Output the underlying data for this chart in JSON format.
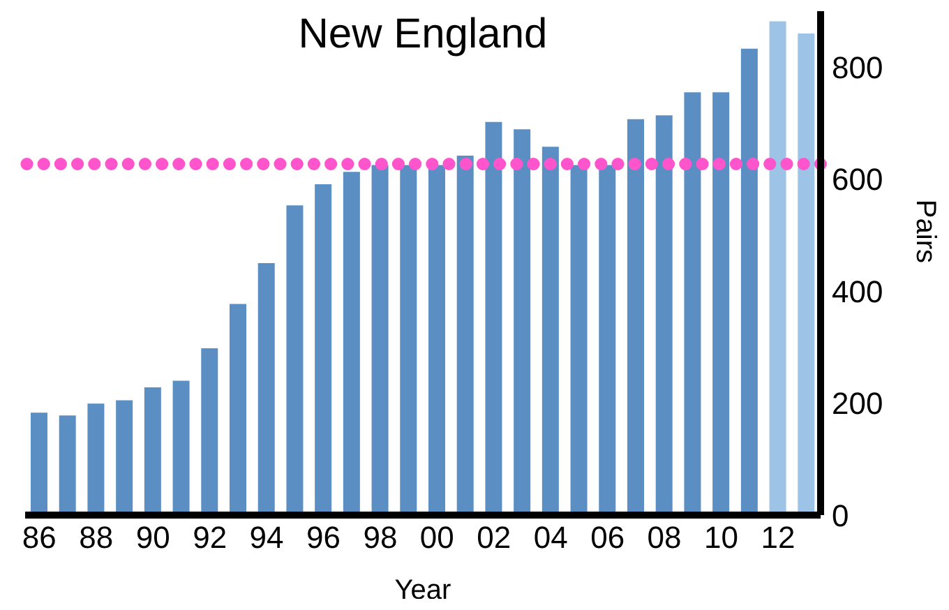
{
  "chart_data": {
    "type": "bar",
    "title": "New England",
    "xlabel": "Year",
    "ylabel": "Pairs",
    "categories": [
      "86",
      null,
      "88",
      null,
      "90",
      null,
      "92",
      null,
      "94",
      null,
      "96",
      null,
      "98",
      null,
      "00",
      null,
      "02",
      null,
      "04",
      null,
      "06",
      null,
      "08",
      null,
      "10",
      null,
      "12",
      null
    ],
    "values": [
      183,
      178,
      199,
      205,
      228,
      240,
      298,
      377,
      450,
      553,
      591,
      613,
      625,
      625,
      625,
      642,
      702,
      689,
      658,
      625,
      625,
      707,
      714,
      755,
      755,
      833,
      882,
      860
    ],
    "colors": [
      "#5b8fc4",
      "#5b8fc4",
      "#5b8fc4",
      "#5b8fc4",
      "#5b8fc4",
      "#5b8fc4",
      "#5b8fc4",
      "#5b8fc4",
      "#5b8fc4",
      "#5b8fc4",
      "#5b8fc4",
      "#5b8fc4",
      "#5b8fc4",
      "#5b8fc4",
      "#5b8fc4",
      "#5b8fc4",
      "#5b8fc4",
      "#5b8fc4",
      "#5b8fc4",
      "#5b8fc4",
      "#5b8fc4",
      "#5b8fc4",
      "#5b8fc4",
      "#5b8fc4",
      "#5b8fc4",
      "#5b8fc4",
      "#9dc3e6",
      "#9dc3e6"
    ],
    "ylim": [
      0,
      900
    ],
    "yticks": [
      0,
      200,
      400,
      600,
      800
    ],
    "grid": false,
    "legend": false,
    "ref_lines": [
      {
        "axis": "y",
        "value": 627,
        "color": "#ff55cc",
        "line_style": "dotted"
      }
    ]
  }
}
